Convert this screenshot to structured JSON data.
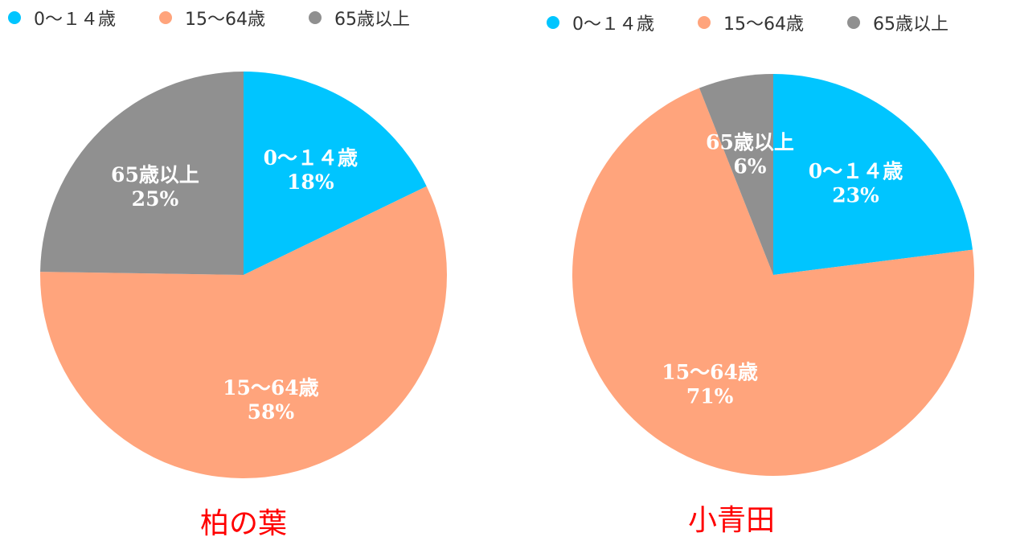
{
  "colors": {
    "age_0_14": "#00c5ff",
    "age_15_64": "#ffa47c",
    "age_65_plus": "#909090",
    "label_text": "#ffffff",
    "caption_text": "#ff0000"
  },
  "chart_data": [
    {
      "type": "pie",
      "title": "柏の葉",
      "legend_position": "top",
      "legend": [
        "0～１４歳",
        "15～64歳",
        "65歳以上"
      ],
      "slices": [
        {
          "label": "0～１４歳",
          "value": 18,
          "value_label": "18%",
          "color": "#00c5ff"
        },
        {
          "label": "15～64歳",
          "value": 58,
          "value_label": "58%",
          "color": "#ffa47c"
        },
        {
          "label": "65歳以上",
          "value": 25,
          "value_label": "25%",
          "color": "#909090"
        }
      ]
    },
    {
      "type": "pie",
      "title": "小青田",
      "legend_position": "top",
      "legend": [
        "0～１４歳",
        "15～64歳",
        "65歳以上"
      ],
      "slices": [
        {
          "label": "0～１４歳",
          "value": 23,
          "value_label": "23%",
          "color": "#00c5ff"
        },
        {
          "label": "15～64歳",
          "value": 71,
          "value_label": "71%",
          "color": "#ffa47c"
        },
        {
          "label": "65歳以上",
          "value": 6,
          "value_label": "6%",
          "color": "#909090"
        }
      ]
    }
  ]
}
